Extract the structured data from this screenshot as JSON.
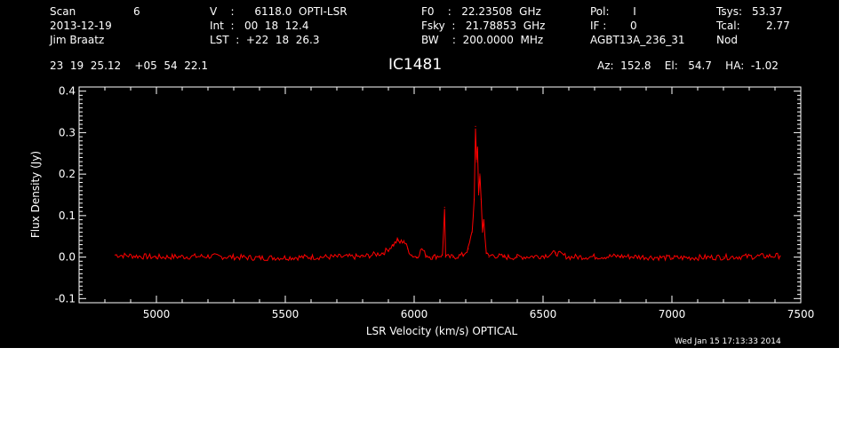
{
  "header": {
    "col1": {
      "scan_label": "Scan",
      "scan_value": "6",
      "date": "2013-12-19",
      "observer": "Jim Braatz"
    },
    "col2": {
      "v_line": "V    :      6118.0  OPTI-LSR",
      "int_line": "Int  :   00  18  12.4",
      "lst_line": "LST  :  +22  18  26.3"
    },
    "col3": {
      "f0_line": "F0    :   22.23508  GHz",
      "fsky_line": "Fsky  :   21.78853  GHz",
      "bw_line": "BW    :  200.0000  MHz"
    },
    "col4": {
      "pol_line": "Pol:       I",
      "if_line": "IF :       0",
      "project": "AGBT13A_236_31"
    },
    "col5": {
      "tsys_label": "Tsys:",
      "tsys_value": "53.37",
      "tcal_label": "Tcal:",
      "tcal_value": "2.77",
      "mode": "Nod"
    },
    "coords": "23  19  25.12    +05  54  22.1",
    "source": "IC1481",
    "pointing": "Az:  152.8    El:   54.7    HA:  -1.02"
  },
  "footer": {
    "timestamp": "Wed Jan 15 17:13:33 2014"
  },
  "chart_data": {
    "type": "line",
    "title": "IC1481",
    "xlabel": "LSR Velocity (km/s) OPTICAL",
    "ylabel": "Flux Density (Jy)",
    "xlim": [
      4700,
      7500
    ],
    "ylim": [
      -0.11,
      0.41
    ],
    "x_ticks": [
      5000,
      5500,
      6000,
      6500,
      7000,
      7500
    ],
    "y_ticks": [
      -0.1,
      0.0,
      0.1,
      0.2,
      0.3,
      0.4
    ],
    "y_tick_labels": [
      "-0.1",
      "0.0",
      "0.1",
      "0.2",
      "0.3",
      "0.4"
    ],
    "grid": false,
    "background": "#000000",
    "axis_color": "#ffffff",
    "series": [
      {
        "color": "#ff0000",
        "x": [
          4840,
          5000,
          5200,
          5400,
          5600,
          5800,
          5880,
          5920,
          5935,
          5945,
          5960,
          5975,
          5990,
          6010,
          6030,
          6045,
          6070,
          6110,
          6118,
          6122,
          6150,
          6190,
          6210,
          6225,
          6233,
          6238,
          6242,
          6246,
          6250,
          6255,
          6260,
          6265,
          6270,
          6280,
          6290,
          6300,
          6350,
          6400,
          6500,
          6550,
          6600,
          6800,
          7000,
          7200,
          7420
        ],
        "y": [
          0.005,
          0.0,
          0.002,
          -0.002,
          0.0,
          0.001,
          0.01,
          0.03,
          0.04,
          0.035,
          0.04,
          0.02,
          0.005,
          0.0,
          0.02,
          0.005,
          0.0,
          0.005,
          0.12,
          0.0,
          0.0,
          0.005,
          0.02,
          0.06,
          0.14,
          0.315,
          0.23,
          0.26,
          0.15,
          0.2,
          0.14,
          0.06,
          0.09,
          0.01,
          0.0,
          0.005,
          0.0,
          0.0,
          0.003,
          0.01,
          0.0,
          0.002,
          -0.002,
          0.0,
          0.003
        ]
      }
    ]
  }
}
